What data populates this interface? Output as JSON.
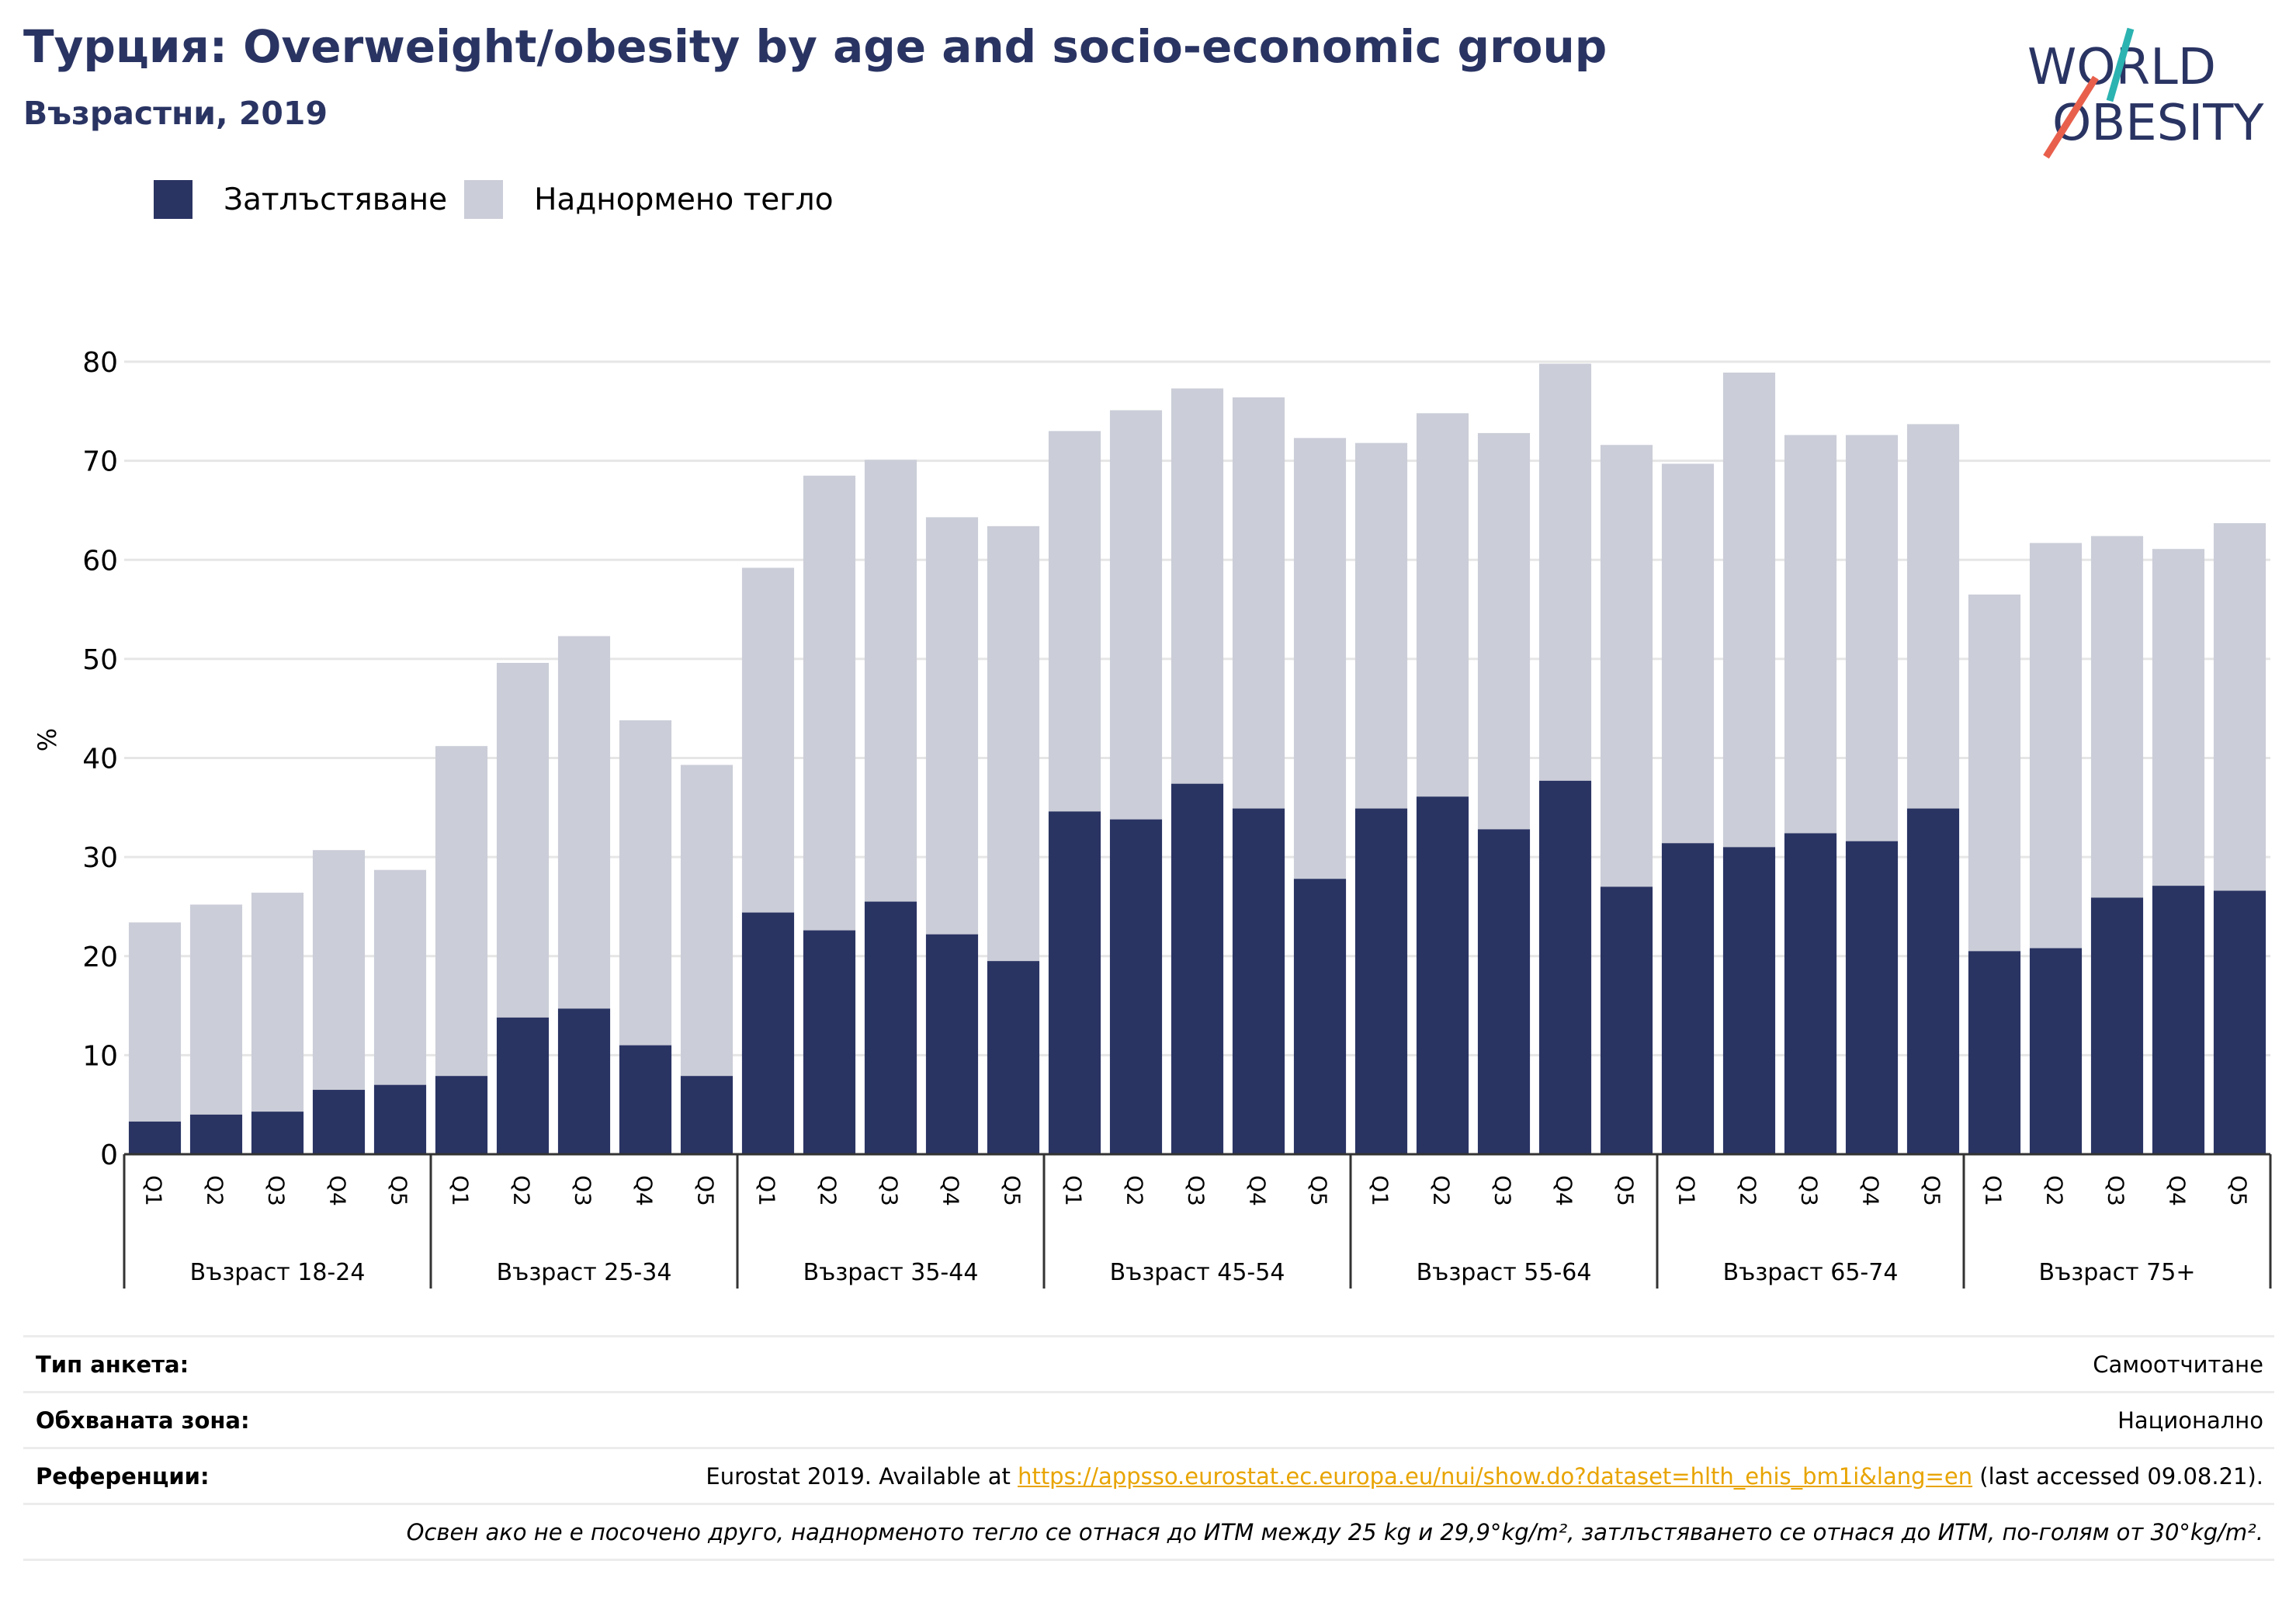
{
  "title": "Турция: Overweight/obesity by age and socio-economic group",
  "subtitle": "Възрастни, 2019",
  "logo": {
    "line1": "WORLD",
    "line2": "OBESITY",
    "accent_teal": "#2bb3b1",
    "accent_red": "#e8604c",
    "text_color": "#2a3463"
  },
  "legend": [
    {
      "label": "Затлъстяване",
      "color": "#2a3463"
    },
    {
      "label": "Наднормено тегло",
      "color": "#cbcdd8"
    }
  ],
  "chart_data": {
    "type": "bar",
    "stacked": true,
    "ylabel": "%",
    "ylim": [
      0,
      80
    ],
    "yticks": [
      0,
      10,
      20,
      30,
      40,
      50,
      60,
      70,
      80
    ],
    "grid": true,
    "legend_position": "top-left",
    "groups": [
      {
        "label": "Възраст 18-24",
        "categories": [
          "Q1",
          "Q2",
          "Q3",
          "Q4",
          "Q5"
        ],
        "obesity": [
          3.3,
          4.0,
          4.3,
          6.5,
          7.0
        ],
        "total": [
          23.4,
          25.2,
          26.4,
          30.7,
          28.7
        ]
      },
      {
        "label": "Възраст 25-34",
        "categories": [
          "Q1",
          "Q2",
          "Q3",
          "Q4",
          "Q5"
        ],
        "obesity": [
          7.9,
          13.8,
          14.7,
          11.0,
          7.9
        ],
        "total": [
          41.2,
          49.6,
          52.3,
          43.8,
          39.3
        ]
      },
      {
        "label": "Възраст 35-44",
        "categories": [
          "Q1",
          "Q2",
          "Q3",
          "Q4",
          "Q5"
        ],
        "obesity": [
          24.4,
          22.6,
          25.5,
          22.2,
          19.5
        ],
        "total": [
          59.2,
          68.5,
          70.1,
          64.3,
          63.4
        ]
      },
      {
        "label": "Възраст 45-54",
        "categories": [
          "Q1",
          "Q2",
          "Q3",
          "Q4",
          "Q5"
        ],
        "obesity": [
          34.6,
          33.8,
          37.4,
          34.9,
          27.8
        ],
        "total": [
          73.0,
          75.1,
          77.3,
          76.4,
          72.3
        ]
      },
      {
        "label": "Възраст 55-64",
        "categories": [
          "Q1",
          "Q2",
          "Q3",
          "Q4",
          "Q5"
        ],
        "obesity": [
          34.9,
          36.1,
          32.8,
          37.7,
          27.0
        ],
        "total": [
          71.8,
          74.8,
          72.8,
          79.8,
          71.6
        ]
      },
      {
        "label": "Възраст 65-74",
        "categories": [
          "Q1",
          "Q2",
          "Q3",
          "Q4",
          "Q5"
        ],
        "obesity": [
          31.4,
          31.0,
          32.4,
          31.6,
          34.9
        ],
        "total": [
          69.7,
          78.9,
          72.6,
          72.6,
          73.7
        ]
      },
      {
        "label": "Възраст 75+",
        "categories": [
          "Q1",
          "Q2",
          "Q3",
          "Q4",
          "Q5"
        ],
        "obesity": [
          20.5,
          20.8,
          25.9,
          27.1,
          26.6
        ],
        "total": [
          56.5,
          61.7,
          62.4,
          61.1,
          63.7
        ]
      }
    ]
  },
  "footer": {
    "survey_label": "Тип анкета:",
    "survey_value": "Самоотчитане",
    "area_label": "Обхваната зона:",
    "area_value": "Национално",
    "ref_label": "Референции:",
    "ref_prefix": "Eurostat 2019. Available at ",
    "ref_link": "https://appsso.eurostat.ec.europa.eu/nui/show.do?dataset=hlth_ehis_bm1i&lang=en",
    "ref_suffix": " (last accessed 09.08.21).",
    "note": "Освен ако не е посочено друго, наднорменото тегло се отнася до ИТМ между 25 kg и 29,9°kg/m², затлъстяването се отнася до ИТМ, по-голям от 30°kg/m²."
  }
}
